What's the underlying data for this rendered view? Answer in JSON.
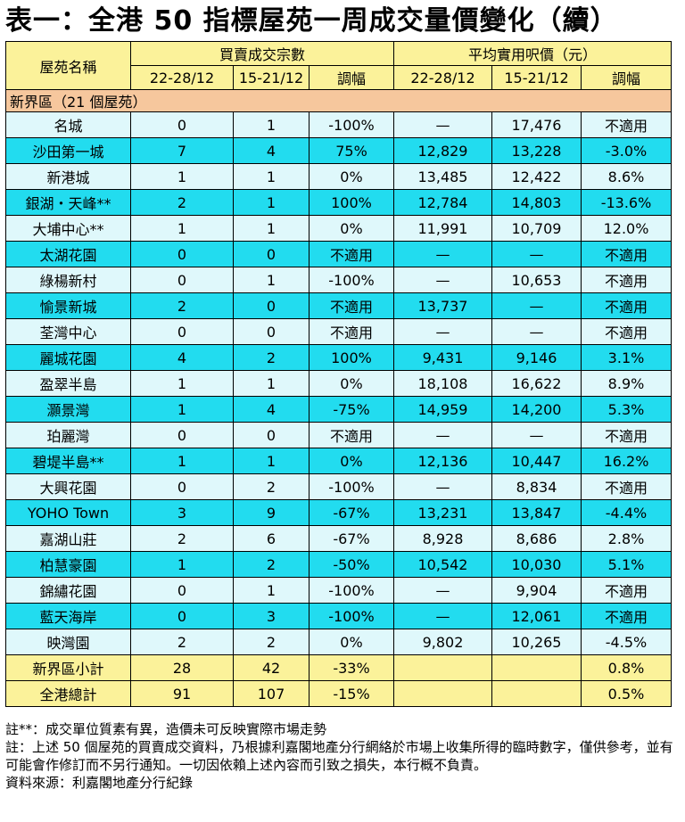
{
  "title": "表一：全港 50 指標屋苑一周成交量價變化（續）",
  "header": {
    "estate_name": "屋苑名稱",
    "group_volume": "買賣成交宗數",
    "group_price": "平均實用呎價（元）",
    "sub": [
      "22-28/12",
      "15-21/12",
      "調幅",
      "22-28/12",
      "15-21/12",
      "調幅"
    ]
  },
  "region": "新界區（21 個屋苑）",
  "rows": [
    {
      "name": "名城",
      "v1": "0",
      "v2": "1",
      "vc": "-100%",
      "p1": "—",
      "p2": "17,476",
      "pc": "不適用"
    },
    {
      "name": "沙田第一城",
      "v1": "7",
      "v2": "4",
      "vc": "75%",
      "p1": "12,829",
      "p2": "13,228",
      "pc": "-3.0%"
    },
    {
      "name": "新港城",
      "v1": "1",
      "v2": "1",
      "vc": "0%",
      "p1": "13,485",
      "p2": "12,422",
      "pc": "8.6%"
    },
    {
      "name": "銀湖・天峰**",
      "v1": "2",
      "v2": "1",
      "vc": "100%",
      "p1": "12,784",
      "p2": "14,803",
      "pc": "-13.6%"
    },
    {
      "name": "大埔中心**",
      "v1": "1",
      "v2": "1",
      "vc": "0%",
      "p1": "11,991",
      "p2": "10,709",
      "pc": "12.0%"
    },
    {
      "name": "太湖花園",
      "v1": "0",
      "v2": "0",
      "vc": "不適用",
      "p1": "—",
      "p2": "—",
      "pc": "不適用"
    },
    {
      "name": "綠楊新村",
      "v1": "0",
      "v2": "1",
      "vc": "-100%",
      "p1": "—",
      "p2": "10,653",
      "pc": "不適用"
    },
    {
      "name": "愉景新城",
      "v1": "2",
      "v2": "0",
      "vc": "不適用",
      "p1": "13,737",
      "p2": "—",
      "pc": "不適用"
    },
    {
      "name": "荃灣中心",
      "v1": "0",
      "v2": "0",
      "vc": "不適用",
      "p1": "—",
      "p2": "—",
      "pc": "不適用"
    },
    {
      "name": "麗城花園",
      "v1": "4",
      "v2": "2",
      "vc": "100%",
      "p1": "9,431",
      "p2": "9,146",
      "pc": "3.1%"
    },
    {
      "name": "盈翠半島",
      "v1": "1",
      "v2": "1",
      "vc": "0%",
      "p1": "18,108",
      "p2": "16,622",
      "pc": "8.9%"
    },
    {
      "name": "灝景灣",
      "v1": "1",
      "v2": "4",
      "vc": "-75%",
      "p1": "14,959",
      "p2": "14,200",
      "pc": "5.3%"
    },
    {
      "name": "珀麗灣",
      "v1": "0",
      "v2": "0",
      "vc": "不適用",
      "p1": "—",
      "p2": "—",
      "pc": "不適用"
    },
    {
      "name": "碧堤半島**",
      "v1": "1",
      "v2": "1",
      "vc": "0%",
      "p1": "12,136",
      "p2": "10,447",
      "pc": "16.2%"
    },
    {
      "name": "大興花園",
      "v1": "0",
      "v2": "2",
      "vc": "-100%",
      "p1": "—",
      "p2": "8,834",
      "pc": "不適用"
    },
    {
      "name": "YOHO Town",
      "v1": "3",
      "v2": "9",
      "vc": "-67%",
      "p1": "13,231",
      "p2": "13,847",
      "pc": "-4.4%"
    },
    {
      "name": "嘉湖山莊",
      "v1": "2",
      "v2": "6",
      "vc": "-67%",
      "p1": "8,928",
      "p2": "8,686",
      "pc": "2.8%"
    },
    {
      "name": "柏慧豪園",
      "v1": "1",
      "v2": "2",
      "vc": "-50%",
      "p1": "10,542",
      "p2": "10,030",
      "pc": "5.1%"
    },
    {
      "name": "錦繡花園",
      "v1": "0",
      "v2": "1",
      "vc": "-100%",
      "p1": "—",
      "p2": "9,904",
      "pc": "不適用"
    },
    {
      "name": "藍天海岸",
      "v1": "0",
      "v2": "3",
      "vc": "-100%",
      "p1": "—",
      "p2": "12,061",
      "pc": "不適用"
    },
    {
      "name": "映灣園",
      "v1": "2",
      "v2": "2",
      "vc": "0%",
      "p1": "9,802",
      "p2": "10,265",
      "pc": "-4.5%"
    }
  ],
  "subtotals": [
    {
      "name": "新界區小計",
      "v1": "28",
      "v2": "42",
      "vc": "-33%",
      "p1": "",
      "p2": "",
      "pc": "0.8%"
    },
    {
      "name": "全港總計",
      "v1": "91",
      "v2": "107",
      "vc": "-15%",
      "p1": "",
      "p2": "",
      "pc": "0.5%"
    }
  ],
  "notes": [
    "註**：成交單位質素有異，造價未可反映實際市場走勢",
    "註：上述 50 個屋苑的買賣成交資料，乃根據利嘉閣地產分行網絡於市場上收集所得的臨時數字，僅供參考，並有可能會作修訂而不另行通知。一切因依賴上述內容而引致之損失，本行概不負責。",
    "資料來源：利嘉閣地產分行紀錄"
  ],
  "colors": {
    "header": "#fbf29a",
    "region": "#f6c79d",
    "row_light": "#dff8fb",
    "row_dark": "#22dcef"
  }
}
